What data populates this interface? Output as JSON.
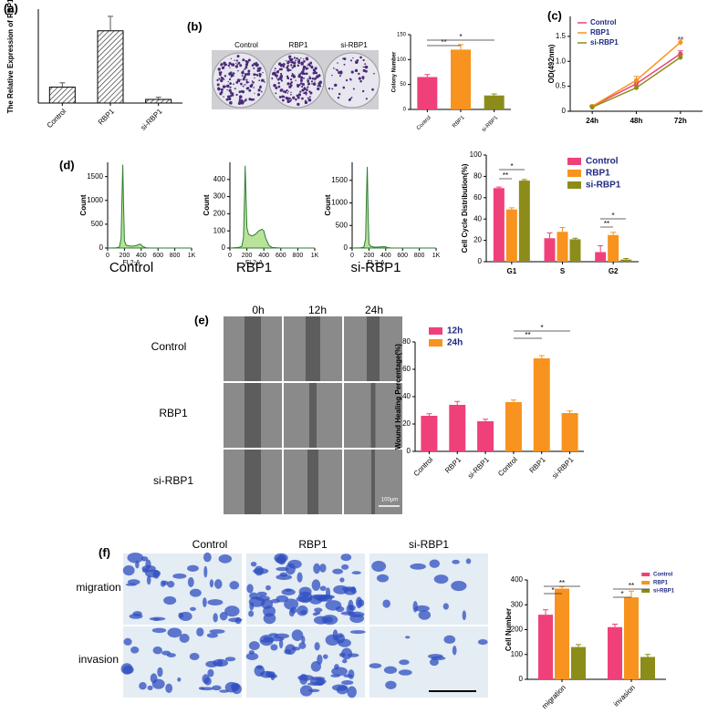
{
  "figure": {
    "panels": [
      "(a)",
      "(b)",
      "(c)",
      "(d)",
      "(e)",
      "(f)"
    ],
    "b_images": {
      "columns": [
        "Control",
        "RBP1",
        "si-RBP1"
      ]
    },
    "e_images": {
      "columns": [
        "0h",
        "12h",
        "24h"
      ],
      "rows": [
        "Control",
        "RBP1",
        "si-RBP1"
      ],
      "scale_bar": "100μm"
    },
    "f_images": {
      "columns": [
        "Control",
        "RBP1",
        "si-RBP1"
      ],
      "rows": [
        "migration",
        "invasion"
      ]
    }
  },
  "chart_data": [
    {
      "type": "bar",
      "ylabel": "The Relative Expression of RBP1",
      "categories": [
        "Control",
        "RBP1",
        "si-RBP1"
      ],
      "values": [
        1.1,
        5.0,
        0.25
      ],
      "errors": [
        0.3,
        1.0,
        0.15
      ],
      "color": "#555555",
      "pattern": "hatch",
      "ylim": [
        0,
        6.5
      ]
    },
    {
      "type": "bar",
      "ylabel": "Colony Number",
      "categories": [
        "Control",
        "RBP1",
        "si-RBP1"
      ],
      "values": [
        65,
        120,
        28
      ],
      "errors": [
        5,
        10,
        3
      ],
      "colors": [
        "#f0407a",
        "#f7931e",
        "#8c8c1a"
      ],
      "ylim": [
        0,
        150
      ],
      "yticks": [
        0,
        50,
        100,
        150
      ],
      "annotations": [
        "**",
        "*"
      ]
    },
    {
      "type": "line",
      "ylabel": "OD(492nm)",
      "categories": [
        "24h",
        "48h",
        "72h"
      ],
      "series": [
        {
          "name": "Control",
          "color": "#f0407a",
          "values": [
            0.1,
            0.55,
            1.15
          ],
          "errors": [
            0.02,
            0.05,
            0.06
          ]
        },
        {
          "name": "RBP1",
          "color": "#f7931e",
          "values": [
            0.1,
            0.62,
            1.38
          ],
          "errors": [
            0.02,
            0.08,
            0.06
          ]
        },
        {
          "name": "si-RBP1",
          "color": "#8c8c1a",
          "values": [
            0.08,
            0.47,
            1.08
          ],
          "errors": [
            0.02,
            0.04,
            0.05
          ]
        }
      ],
      "ylim": [
        0,
        1.9
      ],
      "yticks": [
        0,
        0.5,
        {
          "value": 1,
          "label": "1.0"
        },
        1.5
      ],
      "annotations": [
        "**"
      ]
    },
    {
      "type": "area",
      "title": "Control",
      "xlabel": "FL2-A",
      "ylabel": "Count",
      "color": "#2e7d32",
      "x": [
        0,
        100,
        140,
        160,
        170,
        180,
        190,
        200,
        220,
        260,
        300,
        340,
        380,
        400,
        420,
        460,
        500,
        600,
        700,
        800,
        900,
        1000
      ],
      "values": [
        0,
        5,
        20,
        200,
        1000,
        1750,
        900,
        150,
        60,
        40,
        40,
        50,
        80,
        70,
        30,
        5,
        0,
        0,
        0,
        0,
        0,
        0
      ],
      "xlim": [
        0,
        1000
      ],
      "xticks": [
        0,
        200,
        400,
        600,
        800,
        {
          "value": 1000,
          "label": "1K"
        }
      ],
      "ylim": [
        0,
        1800
      ],
      "yticks": [
        0,
        500,
        1000,
        1500
      ]
    },
    {
      "type": "area",
      "title": "RBP1",
      "xlabel": "FL2-A",
      "ylabel": "Count",
      "color": "#2e7d32",
      "x": [
        0,
        100,
        140,
        160,
        170,
        180,
        190,
        200,
        220,
        260,
        300,
        340,
        380,
        400,
        420,
        460,
        500,
        600,
        700,
        800,
        900,
        1000
      ],
      "values": [
        0,
        3,
        10,
        60,
        250,
        480,
        300,
        120,
        80,
        70,
        80,
        100,
        110,
        100,
        60,
        15,
        3,
        0,
        0,
        0,
        0,
        0
      ],
      "xlim": [
        0,
        1000
      ],
      "xticks": [
        0,
        200,
        400,
        600,
        800,
        {
          "value": 1000,
          "label": "1K"
        }
      ],
      "ylim": [
        0,
        500
      ],
      "yticks": [
        0,
        100,
        200,
        300,
        400
      ]
    },
    {
      "type": "area",
      "title": "si-RBP1",
      "xlabel": "FL2-A",
      "ylabel": "Count",
      "color": "#2e7d32",
      "x": [
        0,
        100,
        140,
        160,
        170,
        180,
        190,
        200,
        220,
        260,
        300,
        340,
        380,
        400,
        420,
        460,
        500,
        600,
        700,
        800,
        900,
        1000
      ],
      "values": [
        0,
        5,
        20,
        200,
        1100,
        1800,
        800,
        100,
        40,
        20,
        20,
        25,
        30,
        25,
        10,
        2,
        0,
        0,
        0,
        0,
        0,
        0
      ],
      "xlim": [
        0,
        1000
      ],
      "xticks": [
        0,
        200,
        400,
        600,
        800,
        {
          "value": 1000,
          "label": "1K"
        }
      ],
      "ylim": [
        0,
        1900
      ],
      "yticks": [
        0,
        500,
        1000,
        1500
      ]
    },
    {
      "type": "bar",
      "ylabel": "Cell Cycle Distribution(%)",
      "categories": [
        "G1",
        "S",
        "G2"
      ],
      "series": [
        {
          "name": "Control",
          "color": "#f0407a",
          "values": [
            69,
            22,
            9
          ],
          "errors": [
            1,
            5,
            6
          ]
        },
        {
          "name": "RBP1",
          "color": "#f7931e",
          "values": [
            49,
            28,
            25
          ],
          "errors": [
            1.5,
            4,
            2.5
          ]
        },
        {
          "name": "si-RBP1",
          "color": "#8c8c1a",
          "values": [
            76,
            21,
            2
          ],
          "errors": [
            1,
            1,
            1
          ]
        }
      ],
      "ylim": [
        0,
        100
      ],
      "yticks": [
        0,
        20,
        40,
        60,
        80,
        100
      ],
      "annotations": [
        "*",
        "**",
        "*",
        "**"
      ]
    },
    {
      "type": "bar",
      "ylabel": "Wound Healing Percentage(%)",
      "categories": [
        "Control",
        "RBP1",
        "si-RBP1",
        "Control",
        "RBP1",
        "si-RBP1"
      ],
      "series": [
        {
          "name": "12h",
          "color": "#f0407a",
          "values": [
            26,
            34,
            22,
            null,
            null,
            null
          ],
          "errors": [
            1.5,
            2.5,
            1.5,
            null,
            null,
            null
          ]
        },
        {
          "name": "24h",
          "color": "#f7931e",
          "values": [
            null,
            null,
            null,
            36,
            68,
            28
          ],
          "errors": [
            null,
            null,
            null,
            1.5,
            2,
            1.5
          ]
        }
      ],
      "ylim": [
        0,
        80
      ],
      "yticks": [
        0,
        20,
        40,
        60,
        80
      ],
      "annotations": [
        "*",
        "**"
      ]
    },
    {
      "type": "bar",
      "ylabel": "Cell Number",
      "categories": [
        "migration",
        "invasion"
      ],
      "series": [
        {
          "name": "Control",
          "color": "#f0407a",
          "values": [
            260,
            210
          ],
          "errors": [
            20,
            12
          ]
        },
        {
          "name": "RBP1",
          "color": "#f7931e",
          "values": [
            365,
            330
          ],
          "errors": [
            8,
            25
          ]
        },
        {
          "name": "si-RBP1",
          "color": "#8c8c1a",
          "values": [
            130,
            90
          ],
          "errors": [
            10,
            10
          ]
        }
      ],
      "ylim": [
        0,
        400
      ],
      "yticks": [
        0,
        100,
        200,
        300,
        400
      ],
      "annotations": [
        "**",
        "*",
        "**",
        "*"
      ]
    }
  ]
}
